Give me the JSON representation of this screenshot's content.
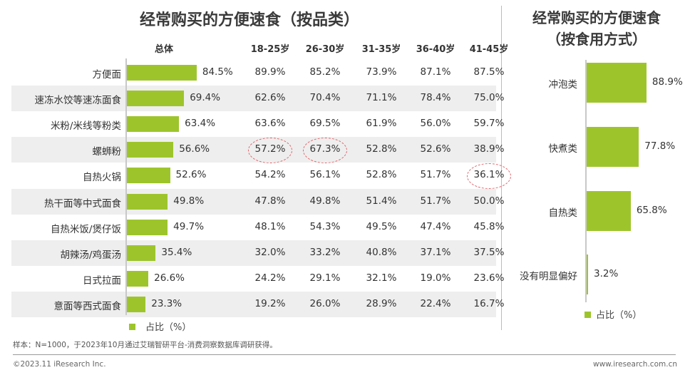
{
  "left_title": "经常购买的方便速食（按品类）",
  "right_title_line1": "经常购买的方便速食",
  "right_title_line2": "（按食用方式）",
  "legend_label": "占比（%）",
  "footnote": "样本：N=1000，于2023年10月通过艾瑞智研平台-消费洞察数据库调研获得。",
  "copyright": "©2023.11 iResearch Inc.",
  "website": "www.iresearch.com.cn",
  "chart_data": [
    {
      "type": "bar",
      "orientation": "horizontal",
      "title": "经常购买的方便速食（按品类）",
      "value_column": "总体",
      "categories": [
        "方便面",
        "速冻水饺等速冻面食",
        "米粉/米线等粉类",
        "螺蛳粉",
        "自热火锅",
        "热干面等中式面食",
        "自热米饭/煲仔饭",
        "胡辣汤/鸡蛋汤",
        "日式拉面",
        "意面等西式面食"
      ],
      "values": [
        84.5,
        69.4,
        63.4,
        56.6,
        52.6,
        49.8,
        49.7,
        35.4,
        26.6,
        23.3
      ],
      "value_labels": [
        "84.5%",
        "69.4%",
        "63.4%",
        "56.6%",
        "52.6%",
        "49.8%",
        "49.7%",
        "35.4%",
        "26.6%",
        "23.3%"
      ],
      "legend": "占比（%）",
      "xlim": [
        0,
        100
      ],
      "table": {
        "columns": [
          "18-25岁",
          "26-30岁",
          "31-35岁",
          "36-40岁",
          "41-45岁"
        ],
        "rows": [
          [
            "89.9%",
            "85.2%",
            "73.9%",
            "87.1%",
            "87.5%"
          ],
          [
            "62.6%",
            "70.4%",
            "71.1%",
            "78.4%",
            "75.0%"
          ],
          [
            "63.6%",
            "69.5%",
            "61.9%",
            "56.0%",
            "59.7%"
          ],
          [
            "57.2%",
            "67.3%",
            "52.8%",
            "52.6%",
            "38.9%"
          ],
          [
            "54.2%",
            "56.1%",
            "52.8%",
            "51.7%",
            "36.1%"
          ],
          [
            "47.8%",
            "49.8%",
            "51.4%",
            "51.7%",
            "50.0%"
          ],
          [
            "48.1%",
            "54.3%",
            "49.5%",
            "47.4%",
            "45.8%"
          ],
          [
            "32.0%",
            "33.2%",
            "40.8%",
            "37.1%",
            "37.5%"
          ],
          [
            "24.2%",
            "29.1%",
            "32.1%",
            "19.0%",
            "23.6%"
          ],
          [
            "19.2%",
            "26.0%",
            "28.9%",
            "22.4%",
            "16.7%"
          ]
        ],
        "highlighted_cells": [
          [
            3,
            0
          ],
          [
            3,
            1
          ],
          [
            4,
            4
          ]
        ]
      }
    },
    {
      "type": "bar",
      "orientation": "horizontal",
      "title": "经常购买的方便速食（按食用方式）",
      "categories": [
        "冲泡类",
        "快煮类",
        "自热类",
        "没有明显偏好"
      ],
      "values": [
        88.9,
        77.8,
        65.8,
        3.2
      ],
      "value_labels": [
        "88.9%",
        "77.8%",
        "65.8%",
        "3.2%"
      ],
      "legend": "占比（%）",
      "xlim": [
        0,
        100
      ]
    }
  ]
}
